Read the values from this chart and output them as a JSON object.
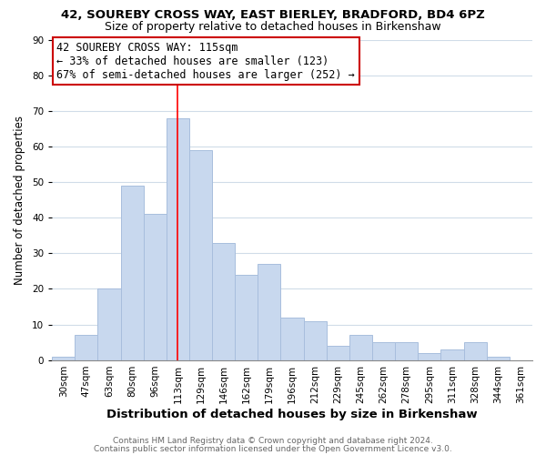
{
  "title": "42, SOUREBY CROSS WAY, EAST BIERLEY, BRADFORD, BD4 6PZ",
  "subtitle": "Size of property relative to detached houses in Birkenshaw",
  "xlabel": "Distribution of detached houses by size in Birkenshaw",
  "ylabel": "Number of detached properties",
  "bar_labels": [
    "30sqm",
    "47sqm",
    "63sqm",
    "80sqm",
    "96sqm",
    "113sqm",
    "129sqm",
    "146sqm",
    "162sqm",
    "179sqm",
    "196sqm",
    "212sqm",
    "229sqm",
    "245sqm",
    "262sqm",
    "278sqm",
    "295sqm",
    "311sqm",
    "328sqm",
    "344sqm",
    "361sqm"
  ],
  "bar_values": [
    1,
    7,
    20,
    49,
    41,
    68,
    59,
    33,
    24,
    27,
    12,
    11,
    4,
    7,
    5,
    5,
    2,
    3,
    5,
    1,
    0
  ],
  "bar_color": "#c8d8ee",
  "bar_edge_color": "#a8bedd",
  "vline_x": 5,
  "vline_color": "red",
  "annotation_title": "42 SOUREBY CROSS WAY: 115sqm",
  "annotation_line1": "← 33% of detached houses are smaller (123)",
  "annotation_line2": "67% of semi-detached houses are larger (252) →",
  "annotation_box_facecolor": "#ffffff",
  "annotation_box_edgecolor": "#cc0000",
  "ylim": [
    0,
    90
  ],
  "yticks": [
    0,
    10,
    20,
    30,
    40,
    50,
    60,
    70,
    80,
    90
  ],
  "footer1": "Contains HM Land Registry data © Crown copyright and database right 2024.",
  "footer2": "Contains public sector information licensed under the Open Government Licence v3.0.",
  "background_color": "#ffffff",
  "axes_background_color": "#ffffff",
  "grid_color": "#d0dce8",
  "title_fontsize": 9.5,
  "subtitle_fontsize": 9,
  "xlabel_fontsize": 9.5,
  "ylabel_fontsize": 8.5,
  "tick_fontsize": 7.5,
  "annotation_fontsize": 8.5,
  "footer_fontsize": 6.5
}
